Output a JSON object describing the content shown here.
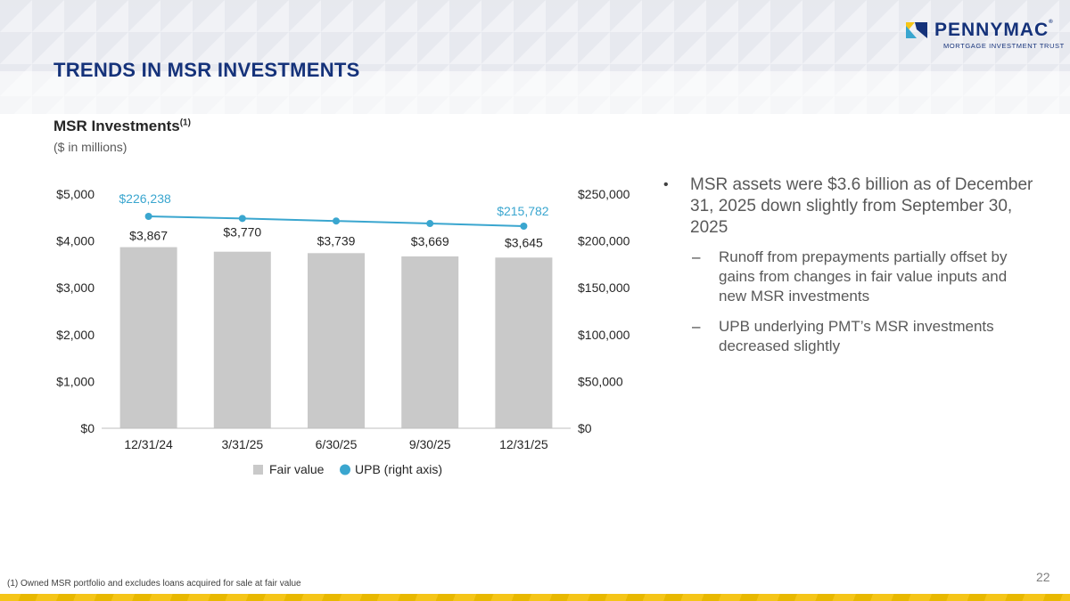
{
  "brand": {
    "name": "PENNYMAC",
    "tagline": "MORTGAGE INVESTMENT TRUST",
    "colors": {
      "navy": "#15327a",
      "yellow": "#f5c518",
      "accent_blue": "#3aa6cf",
      "bar_gray": "#c9c9c9"
    }
  },
  "slide": {
    "title": "TRENDS IN MSR INVESTMENTS",
    "page_number": "22",
    "footnote": "(1) Owned MSR portfolio and excludes loans acquired for sale at fair value"
  },
  "chart": {
    "title": "MSR Investments",
    "title_footnote_ref": "(1)",
    "subtitle": "($ in millions)"
  },
  "chart_data": {
    "type": "bar",
    "categories": [
      "12/31/24",
      "3/31/25",
      "6/30/25",
      "9/30/25",
      "12/31/25"
    ],
    "series": [
      {
        "name": "Fair value",
        "type": "bar",
        "axis": "left",
        "color": "#c9c9c9",
        "values": [
          3867,
          3770,
          3739,
          3669,
          3645
        ],
        "labels": [
          "$3,867",
          "$3,770",
          "$3,739",
          "$3,669",
          "$3,645"
        ]
      },
      {
        "name": "UPB (right axis)",
        "type": "line",
        "axis": "right",
        "color": "#3aa6cf",
        "values": [
          226238,
          224000,
          221300,
          218600,
          215782
        ],
        "labels": [
          "$226,238",
          null,
          null,
          null,
          "$215,782"
        ]
      }
    ],
    "left_axis": {
      "range": [
        0,
        5000
      ],
      "ticks": [
        0,
        1000,
        2000,
        3000,
        4000,
        5000
      ],
      "tick_labels": [
        "$0",
        "$1,000",
        "$2,000",
        "$3,000",
        "$4,000",
        "$5,000"
      ]
    },
    "right_axis": {
      "range": [
        0,
        250000
      ],
      "ticks": [
        0,
        50000,
        100000,
        150000,
        200000,
        250000
      ],
      "tick_labels": [
        "$0",
        "$50,000",
        "$100,000",
        "$150,000",
        "$200,000",
        "$250,000"
      ]
    },
    "legend": [
      {
        "label": "Fair value",
        "marker": "square",
        "color": "#c9c9c9"
      },
      {
        "label": "UPB (right axis)",
        "marker": "circle",
        "color": "#3aa6cf"
      }
    ],
    "legend_position": "bottom",
    "grid": false
  },
  "commentary": {
    "main": "MSR assets were $3.6 billion as of December 31, 2025 down slightly from September 30, 2025",
    "sub_points": [
      "Runoff from prepayments partially offset by gains from changes in fair value inputs and new MSR investments",
      "UPB underlying PMT’s MSR investments decreased slightly"
    ]
  }
}
